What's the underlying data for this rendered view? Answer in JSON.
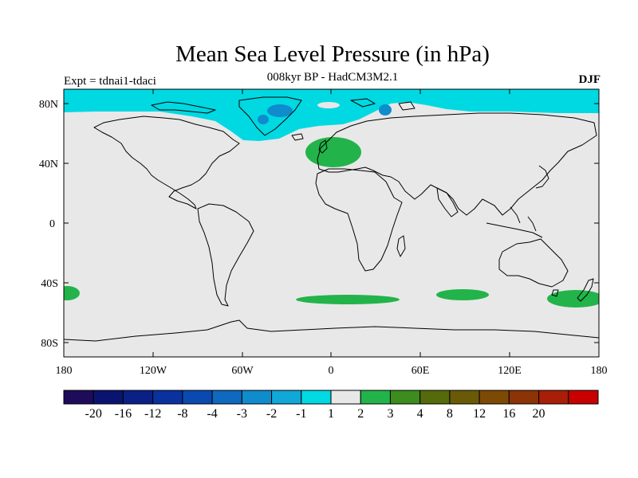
{
  "title": "Mean Sea Level Pressure (in hPa)",
  "subtitle": "008kyr BP - HadCM3M2.1",
  "experiment": "Expt = tdnai1-tdaci",
  "season": "DJF",
  "lat_ticks": [
    "80N",
    "40N",
    "0",
    "40S",
    "80S"
  ],
  "lon_ticks": [
    "180",
    "120W",
    "60W",
    "0",
    "60E",
    "120E",
    "180"
  ],
  "colorbar": {
    "colors": [
      "#1e0b5a",
      "#0a1470",
      "#0a2087",
      "#0a329f",
      "#0a4ab0",
      "#0f69be",
      "#0f8ccd",
      "#10a8d8",
      "#00d8e2",
      "#e8e8e8",
      "#22b44a",
      "#3c8c1e",
      "#556a0a",
      "#6a5a08",
      "#7d4a06",
      "#8c3406",
      "#a81e06",
      "#c80000"
    ],
    "labels": [
      "-20",
      "-16",
      "-12",
      "-8",
      "-4",
      "-3",
      "-2",
      "-1",
      "1",
      "2",
      "3",
      "4",
      "8",
      "12",
      "16",
      "20"
    ]
  },
  "chart_data": {
    "type": "heatmap",
    "title": "Mean Sea Level Pressure (in hPa)",
    "subtitle": "008kyr BP - HadCM3M2.1",
    "variable_units": "hPa",
    "xlim": [
      -180,
      180
    ],
    "ylim": [
      -90,
      90
    ],
    "contour_levels": [
      -20,
      -16,
      -12,
      -8,
      -4,
      -3,
      -2,
      -1,
      1,
      2,
      3,
      4,
      8,
      12,
      16,
      20
    ],
    "background_band": "-1 to 1",
    "regions": [
      {
        "area": "Arctic Ocean / northern high latitudes (~70N-90N)",
        "band": "-2 to -1",
        "lon_range": [
          -180,
          180
        ]
      },
      {
        "area": "Greenland / Iceland / Norwegian Sea (~60N-85N)",
        "band": "-2 to -1",
        "lon_range": [
          -60,
          0
        ]
      },
      {
        "area": "Central Greenland (~78N)",
        "band": "-3 to -2",
        "lon_range": [
          -42,
          -30
        ]
      },
      {
        "area": "Barents / Kara Sea (~80N)",
        "band": "-3 to -2",
        "lon_range": [
          32,
          42
        ]
      },
      {
        "area": "Europe / Scandinavia (~45N-60N)",
        "band": "1 to 2",
        "lon_range": [
          -15,
          20
        ]
      },
      {
        "area": "South Pacific (~45S)",
        "band": "1 to 2",
        "lon_range": [
          -180,
          -165
        ]
      },
      {
        "area": "South Atlantic (~50S)",
        "band": "1 to 2",
        "lon_range": [
          -22,
          38
        ]
      },
      {
        "area": "South Indian Ocean (~45S)",
        "band": "1 to 2",
        "lon_range": [
          70,
          100
        ]
      },
      {
        "area": "Southwest Pacific / Tasman Sea (~48S)",
        "band": "1 to 2",
        "lon_range": [
          148,
          180
        ]
      }
    ]
  }
}
